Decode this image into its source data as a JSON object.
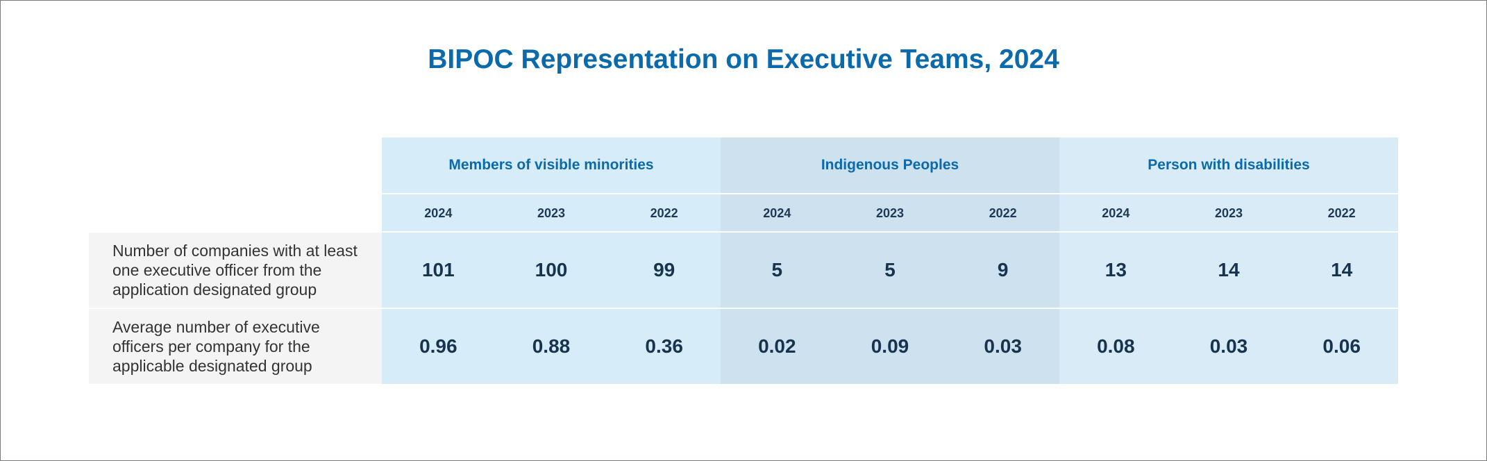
{
  "chart_data": {
    "type": "table",
    "title": "BIPOC Representation on Executive Teams, 2024",
    "groups": [
      "Members of visible minorities",
      "Indigenous Peoples",
      "Person with disabilities"
    ],
    "years": [
      "2024",
      "2023",
      "2022"
    ],
    "rows": [
      {
        "label": "Number of companies with at least one executive officer from the application designated group",
        "values": [
          "101",
          "100",
          "99",
          "5",
          "5",
          "9",
          "13",
          "14",
          "14"
        ]
      },
      {
        "label": "Average number of executive officers per company for the applicable designated group",
        "values": [
          "0.96",
          "0.88",
          "0.36",
          "0.02",
          "0.09",
          "0.03",
          "0.08",
          "0.03",
          "0.06"
        ]
      }
    ],
    "colors": {
      "title": "#0a6aab",
      "group_fills": [
        "#d6ecf8",
        "#cde1ee",
        "#d8ebf7"
      ],
      "row_label_fill": "#f4f4f4",
      "value_text": "#17344f"
    }
  }
}
